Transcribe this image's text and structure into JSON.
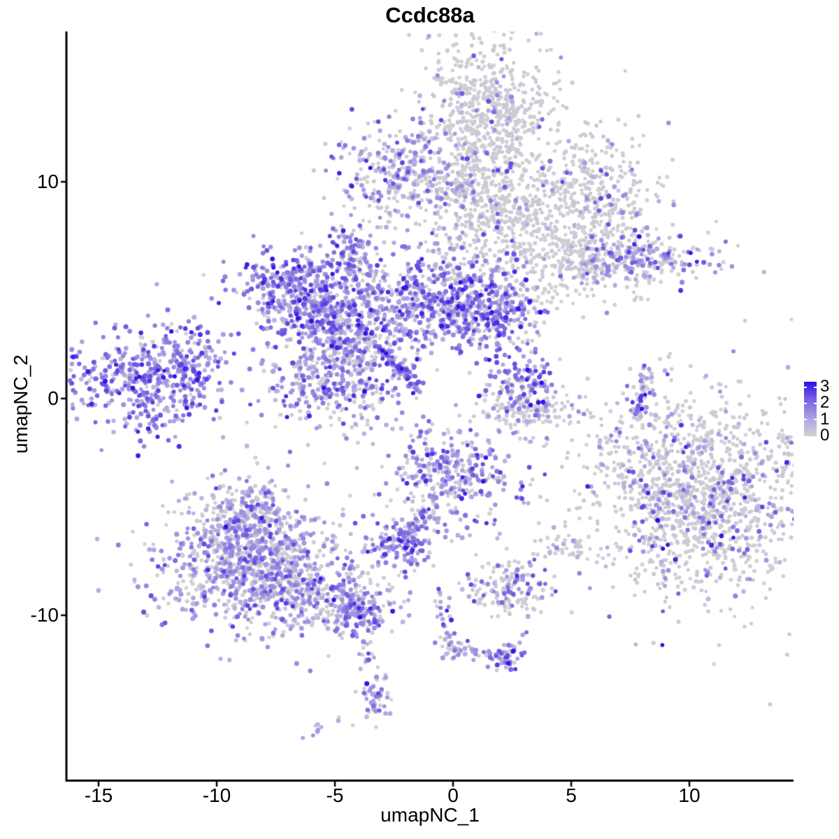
{
  "figure": {
    "title": "Ccdc88a"
  },
  "chart_data": {
    "type": "scatter",
    "title": "Ccdc88a",
    "xlabel": "umapNC_1",
    "ylabel": "umapNC_2",
    "x_ticks": [
      -15,
      -10,
      -5,
      0,
      5,
      10
    ],
    "y_ticks": [
      10,
      0,
      -10
    ],
    "xlim": [
      -16.4,
      14.4
    ],
    "ylim": [
      -17.6,
      16.9
    ],
    "grid": false,
    "legend": {
      "position": "right",
      "ticks": [
        "3",
        "2",
        "1",
        "0"
      ],
      "min": 0,
      "max": 3
    },
    "color_scale": {
      "description": "expression: lightgrey (0) to blue (3)",
      "domain": [
        0,
        1,
        2,
        3
      ],
      "stops": [
        "#d3d3d3",
        "#aba1e3",
        "#7b61e1",
        "#2a11e6"
      ]
    },
    "seed": 42,
    "clusters": [
      {
        "name": "top-gray-head",
        "cx": 1.5,
        "cy": 13.2,
        "sx": 1.35,
        "sy": 1.8,
        "n": 640,
        "w": [
          0.94,
          0.04,
          0.02,
          0
        ]
      },
      {
        "name": "top-gray-neck",
        "cx": 1.2,
        "cy": 9.0,
        "sx": 0.85,
        "sy": 1.5,
        "n": 270,
        "w": [
          0.94,
          0.04,
          0.02,
          0
        ]
      },
      {
        "name": "top-gray-right",
        "cx": 4.2,
        "cy": 8.1,
        "sx": 2.3,
        "sy": 1.3,
        "n": 540,
        "w": [
          0.92,
          0.06,
          0.02,
          0
        ]
      },
      {
        "name": "top-gray-right-arm",
        "cx": 5.9,
        "cy": 9.9,
        "sx": 1.3,
        "sy": 1.4,
        "n": 230,
        "w": [
          0.92,
          0.06,
          0.02,
          0
        ]
      },
      {
        "name": "top-gray-lower-tail",
        "cx": 4.8,
        "cy": 5.9,
        "sx": 1.5,
        "sy": 0.8,
        "n": 160,
        "w": [
          0.9,
          0.08,
          0.02,
          0
        ]
      },
      {
        "name": "top-bridge",
        "cx": -0.5,
        "cy": 9.6,
        "sx": 1.3,
        "sy": 0.45,
        "n": 70,
        "w": [
          0.85,
          0.13,
          0.02,
          0
        ]
      },
      {
        "name": "top-mid-purple",
        "cx": -2.2,
        "cy": 10.5,
        "sx": 1.5,
        "sy": 1.05,
        "n": 270,
        "w": [
          0.42,
          0.4,
          0.16,
          0.02
        ]
      },
      {
        "name": "top-mid-dots",
        "cx": -3.0,
        "cy": 8.25,
        "sx": 0.3,
        "sy": 0.4,
        "n": 10,
        "w": [
          0.4,
          0.45,
          0.15,
          0
        ]
      },
      {
        "name": "upper-right-strip",
        "cx": 8.35,
        "cy": 6.45,
        "sx": 1.7,
        "sy": 0.55,
        "n": 150,
        "rot": 3,
        "w": [
          0.48,
          0.3,
          0.18,
          0.04
        ]
      },
      {
        "name": "upper-right-strip-left",
        "cx": 6.9,
        "cy": 6.35,
        "sx": 0.8,
        "sy": 0.35,
        "n": 55,
        "w": [
          0.5,
          0.38,
          0.12,
          0
        ]
      },
      {
        "name": "upper-right-tail-dots",
        "cx": 8.6,
        "cy": 5.6,
        "sx": 0.4,
        "sy": 0.3,
        "n": 8,
        "w": [
          0.55,
          0.35,
          0.1,
          0
        ]
      },
      {
        "name": "upper-right-below-dots",
        "cx": 7.8,
        "cy": 4.4,
        "sx": 0.3,
        "sy": 0.3,
        "n": 5,
        "w": [
          0.8,
          0.2,
          0,
          0
        ]
      },
      {
        "name": "central-left-lobe",
        "cx": -6.9,
        "cy": 5.15,
        "sx": 1.1,
        "sy": 0.95,
        "n": 330,
        "w": [
          0.18,
          0.42,
          0.32,
          0.08
        ]
      },
      {
        "name": "central-left-lower",
        "cx": -5.7,
        "cy": 4.0,
        "sx": 0.85,
        "sy": 0.8,
        "n": 170,
        "w": [
          0.25,
          0.45,
          0.25,
          0.05
        ]
      },
      {
        "name": "central-top-knob",
        "cx": -4.5,
        "cy": 6.9,
        "sx": 0.5,
        "sy": 0.75,
        "n": 90,
        "w": [
          0.3,
          0.45,
          0.22,
          0.03
        ]
      },
      {
        "name": "central-mid",
        "cx": -3.8,
        "cy": 3.85,
        "sx": 1.3,
        "sy": 1.15,
        "n": 300,
        "w": [
          0.42,
          0.38,
          0.17,
          0.03
        ]
      },
      {
        "name": "central-right-lobe",
        "cx": -0.7,
        "cy": 4.8,
        "sx": 1.6,
        "sy": 1.25,
        "n": 480,
        "w": [
          0.28,
          0.4,
          0.26,
          0.06
        ]
      },
      {
        "name": "central-right-ext",
        "cx": 1.5,
        "cy": 3.9,
        "sx": 1.15,
        "sy": 0.9,
        "n": 260,
        "w": [
          0.28,
          0.4,
          0.26,
          0.06
        ]
      },
      {
        "name": "central-lower-blob",
        "cx": -5.0,
        "cy": 0.8,
        "sx": 1.5,
        "sy": 1.2,
        "n": 380,
        "w": [
          0.38,
          0.42,
          0.17,
          0.03
        ]
      },
      {
        "name": "central-connector",
        "cx": -4.4,
        "cy": 2.3,
        "sx": 0.6,
        "sy": 0.7,
        "n": 80,
        "w": [
          0.5,
          0.35,
          0.15,
          0
        ]
      },
      {
        "name": "central-streak",
        "line": {
          "x1": -3.2,
          "y1": 2.4,
          "x2": -1.35,
          "y2": 0.35,
          "jitter": 0.14
        },
        "n": 75,
        "w": [
          0.02,
          0.28,
          0.55,
          0.15
        ]
      },
      {
        "name": "central-streak-dark-dot",
        "cx": -2.16,
        "cy": 1.37,
        "sx": 0.02,
        "sy": 0.02,
        "n": 1,
        "w": [
          0,
          0,
          0,
          1
        ]
      },
      {
        "name": "left-cluster",
        "cx": -12.8,
        "cy": 0.95,
        "sx": 1.7,
        "sy": 1.3,
        "n": 440,
        "w": [
          0.1,
          0.45,
          0.37,
          0.08
        ]
      },
      {
        "name": "left-cluster-point",
        "cx": -11.2,
        "cy": 1.7,
        "sx": 0.6,
        "sy": 0.5,
        "n": 70,
        "w": [
          0.12,
          0.5,
          0.33,
          0.05
        ]
      },
      {
        "name": "left-lone-dot",
        "cx": -10.6,
        "cy": 5.7,
        "sx": 0.05,
        "sy": 0.05,
        "n": 1,
        "w": [
          1,
          0,
          0,
          0
        ]
      },
      {
        "name": "mid-right-purple",
        "cx": 2.9,
        "cy": 0.8,
        "sx": 0.75,
        "sy": 0.7,
        "n": 120,
        "w": [
          0.22,
          0.42,
          0.3,
          0.06
        ]
      },
      {
        "name": "mid-right-gray-crescent",
        "cx": 3.0,
        "cy": -0.45,
        "sx": 1.25,
        "sy": 0.5,
        "n": 140,
        "w": [
          0.86,
          0.11,
          0.03,
          0
        ]
      },
      {
        "name": "mid-right-below-dots",
        "cx": 2.7,
        "cy": -1.6,
        "sx": 0.5,
        "sy": 0.35,
        "n": 6,
        "w": [
          0.55,
          0.35,
          0.1,
          0
        ]
      },
      {
        "name": "right-sliver",
        "line": {
          "x1": 8.2,
          "y1": 1.3,
          "x2": 7.78,
          "y2": -0.9,
          "jitter": 0.22
        },
        "n": 60,
        "w": [
          0.42,
          0.35,
          0.19,
          0.04
        ]
      },
      {
        "name": "right-sliver-below-dots",
        "cx": 8.05,
        "cy": -1.9,
        "sx": 0.3,
        "sy": 0.3,
        "n": 4,
        "w": [
          0.5,
          0.4,
          0.1,
          0
        ]
      },
      {
        "name": "right-big-gray",
        "cx": 10.4,
        "cy": -4.35,
        "sx": 2.5,
        "sy": 2.3,
        "n": 1400,
        "w": [
          0.82,
          0.12,
          0.05,
          0.01
        ]
      },
      {
        "name": "right-big-halo",
        "cx": 8.3,
        "cy": -2.6,
        "sx": 0.7,
        "sy": 1.0,
        "n": 25,
        "w": [
          0.75,
          0.2,
          0.05,
          0
        ]
      },
      {
        "name": "mid-lone-dots",
        "cx": 4.2,
        "cy": -1.95,
        "sx": 0.2,
        "sy": 0.15,
        "n": 2,
        "w": [
          0.6,
          0.4,
          0,
          0
        ]
      },
      {
        "name": "small-gray-east",
        "cx": 4.9,
        "cy": -6.9,
        "sx": 0.55,
        "sy": 0.35,
        "n": 45,
        "w": [
          0.72,
          0.22,
          0.06,
          0
        ]
      },
      {
        "name": "mid-bottom-cluster",
        "cx": -0.1,
        "cy": -3.55,
        "sx": 1.4,
        "sy": 1.2,
        "n": 330,
        "w": [
          0.36,
          0.38,
          0.22,
          0.04
        ]
      },
      {
        "name": "mid-bottom-chain",
        "line": {
          "x1": -1.0,
          "y1": -5.2,
          "x2": -2.0,
          "y2": -6.2,
          "jitter": 0.16
        },
        "n": 25,
        "w": [
          0.4,
          0.4,
          0.2,
          0
        ]
      },
      {
        "name": "small-purple-below",
        "cx": -2.15,
        "cy": -6.6,
        "sx": 0.75,
        "sy": 0.55,
        "n": 130,
        "w": [
          0.18,
          0.45,
          0.32,
          0.05
        ]
      },
      {
        "name": "small-purple-below-dots",
        "cx": -1.55,
        "cy": -7.85,
        "sx": 0.25,
        "sy": 0.3,
        "n": 6,
        "w": [
          0.3,
          0.5,
          0.2,
          0
        ]
      },
      {
        "name": "mid-pair-dots",
        "cx": 2.95,
        "cy": -4.75,
        "sx": 0.3,
        "sy": 0.15,
        "n": 5,
        "w": [
          0.1,
          0.5,
          0.4,
          0
        ]
      },
      {
        "name": "bottomleft-top",
        "cx": -8.8,
        "cy": -5.6,
        "sx": 1.0,
        "sy": 0.95,
        "n": 280,
        "w": [
          0.45,
          0.42,
          0.12,
          0.01
        ]
      },
      {
        "name": "bottomleft-main",
        "cx": -8.5,
        "cy": -7.7,
        "sx": 1.9,
        "sy": 1.45,
        "n": 850,
        "w": [
          0.42,
          0.44,
          0.13,
          0.01
        ]
      },
      {
        "name": "bottomleft-tail",
        "cx": -5.8,
        "cy": -8.85,
        "sx": 1.6,
        "sy": 0.8,
        "n": 320,
        "rot": 15,
        "w": [
          0.52,
          0.36,
          0.11,
          0.01
        ]
      },
      {
        "name": "bottomleft-tail-tip",
        "cx": -4.05,
        "cy": -9.9,
        "sx": 0.6,
        "sy": 0.5,
        "n": 110,
        "w": [
          0.22,
          0.5,
          0.25,
          0.03
        ]
      },
      {
        "name": "bottom-tail-chain",
        "line": {
          "x1": -3.9,
          "y1": -10.8,
          "x2": -3.6,
          "y2": -12.6,
          "jitter": 0.22
        },
        "n": 14,
        "w": [
          0.45,
          0.4,
          0.15,
          0
        ]
      },
      {
        "name": "bottom-tail-blob",
        "cx": -3.35,
        "cy": -13.8,
        "sx": 0.35,
        "sy": 0.85,
        "n": 50,
        "w": [
          0.32,
          0.45,
          0.21,
          0.02
        ]
      },
      {
        "name": "bottom-lone-dot",
        "cx": -4.8,
        "cy": -14.8,
        "sx": 0.05,
        "sy": 0.05,
        "n": 1,
        "w": [
          1,
          0,
          0,
          0
        ]
      },
      {
        "name": "bottom-small-blob",
        "cx": -5.9,
        "cy": -15.3,
        "sx": 0.35,
        "sy": 0.15,
        "n": 9,
        "rot": -25,
        "w": [
          0.15,
          0.75,
          0.1,
          0
        ]
      },
      {
        "name": "bottom-y-chain",
        "line": {
          "x1": -0.75,
          "y1": -8.7,
          "x2": -0.05,
          "y2": -11.2,
          "jitter": 0.13
        },
        "n": 24,
        "w": [
          0.25,
          0.45,
          0.25,
          0.05
        ]
      },
      {
        "name": "bottom-y-junction",
        "cx": 0.1,
        "cy": -11.5,
        "sx": 0.4,
        "sy": 0.35,
        "n": 35,
        "w": [
          0.4,
          0.4,
          0.2,
          0
        ]
      },
      {
        "name": "bottom-y-right-chain",
        "line": {
          "x1": 0.5,
          "y1": -11.6,
          "x2": 1.9,
          "y2": -11.9,
          "jitter": 0.12
        },
        "n": 12,
        "w": [
          0.4,
          0.4,
          0.2,
          0
        ]
      },
      {
        "name": "bottom-y-end",
        "cx": 2.3,
        "cy": -11.9,
        "sx": 0.5,
        "sy": 0.3,
        "n": 45,
        "w": [
          0.22,
          0.45,
          0.28,
          0.05
        ]
      },
      {
        "name": "bottom-y-upper-dots",
        "cx": 2.95,
        "cy": -11.0,
        "sx": 0.2,
        "sy": 0.4,
        "n": 4,
        "w": [
          0.3,
          0.5,
          0.2,
          0
        ]
      },
      {
        "name": "small-gray-south",
        "cx": 2.3,
        "cy": -8.85,
        "sx": 0.95,
        "sy": 0.55,
        "n": 150,
        "w": [
          0.66,
          0.23,
          0.1,
          0.01
        ]
      },
      {
        "name": "small-gray-south-trail",
        "line": {
          "x1": 2.9,
          "y1": -7.9,
          "x2": 3.6,
          "y2": -7.0,
          "jitter": 0.15
        },
        "n": 6,
        "w": [
          0.3,
          0.5,
          0.2,
          0
        ]
      }
    ]
  }
}
